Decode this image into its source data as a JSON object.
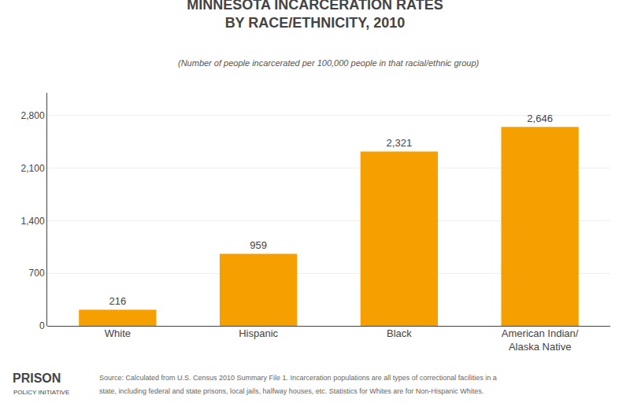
{
  "chart_data": {
    "type": "bar",
    "title": "MINNESOTA INCARCERATION RATES\nBY RACE/ETHNICITY, 2010",
    "subtitle": "(Number of people incarcerated per 100,000 people in that racial/ethnic group)",
    "categories": [
      "White",
      "Hispanic",
      "Black",
      "American Indian/\nAlaska Native"
    ],
    "values": [
      216,
      959,
      2321,
      2646
    ],
    "value_labels": [
      "216",
      "959",
      "2,321",
      "2,646"
    ],
    "color": "#F5A000",
    "ylim": [
      0,
      3100
    ],
    "yticks": [
      0,
      700,
      {
        "value": 1400,
        "label": "1,400"
      },
      {
        "value": 2100,
        "label": "2,100"
      },
      {
        "value": 2800,
        "label": "2,800"
      }
    ],
    "grid": true,
    "data_labels": true,
    "annotations": [
      "PRISON",
      "POLICY INITIATIVE",
      "Source: Calculated from U.S. Census 2010 Summary File 1. Incarceration populations are all types of correctional facilities in a",
      "state, including federal and state prisons, local jails, halfway houses, etc. Statistics for Whites are for Non-Hispanic Whites."
    ]
  }
}
